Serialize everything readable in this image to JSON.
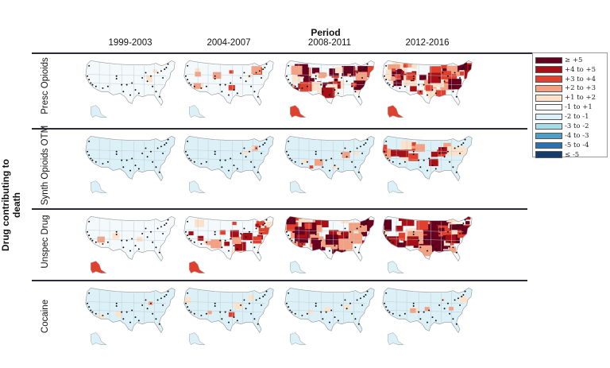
{
  "chart_data": {
    "type": "heatmap",
    "title": "Period",
    "ylabel": "Drug contributing to death",
    "columns": [
      "1999-2003",
      "2004-2007",
      "2008-2011",
      "2012-2016"
    ],
    "rows": [
      "Presc Opioids",
      "Synth Opioids OTM",
      "Unspec Drug",
      "Cocaine"
    ],
    "legend": {
      "placement": "top-right",
      "entries": [
        {
          "label": "≥ +5",
          "color": "#67001f"
        },
        {
          "label": "+4 to +5",
          "color": "#a50f15"
        },
        {
          "label": "+3 to +4",
          "color": "#e0402e"
        },
        {
          "label": "+2 to +3",
          "color": "#f4a082"
        },
        {
          "label": "+1 to +2",
          "color": "#fde2cb"
        },
        {
          "label": "-1 to +1",
          "color": "#f9fbfd"
        },
        {
          "label": "-2 to -1",
          "color": "#dcf1f7"
        },
        {
          "label": "-3 to -2",
          "color": "#a7dbe8"
        },
        {
          "label": "-4 to -3",
          "color": "#4f9ec5"
        },
        {
          "label": "-5 to -4",
          "color": "#2a72b0"
        },
        {
          "label": "≤ -5",
          "color": "#153d6b"
        }
      ]
    },
    "panels_intensity_level": [
      [
        1,
        3,
        7,
        8
      ],
      [
        0,
        1,
        2,
        5
      ],
      [
        1,
        5,
        8,
        9
      ],
      [
        1,
        2,
        1,
        2
      ]
    ],
    "note": "Each panel is a US county choropleth map of standardized scores with black dots marking cities; intensity_level is an approximate 0-9 overall heat for the panel."
  }
}
